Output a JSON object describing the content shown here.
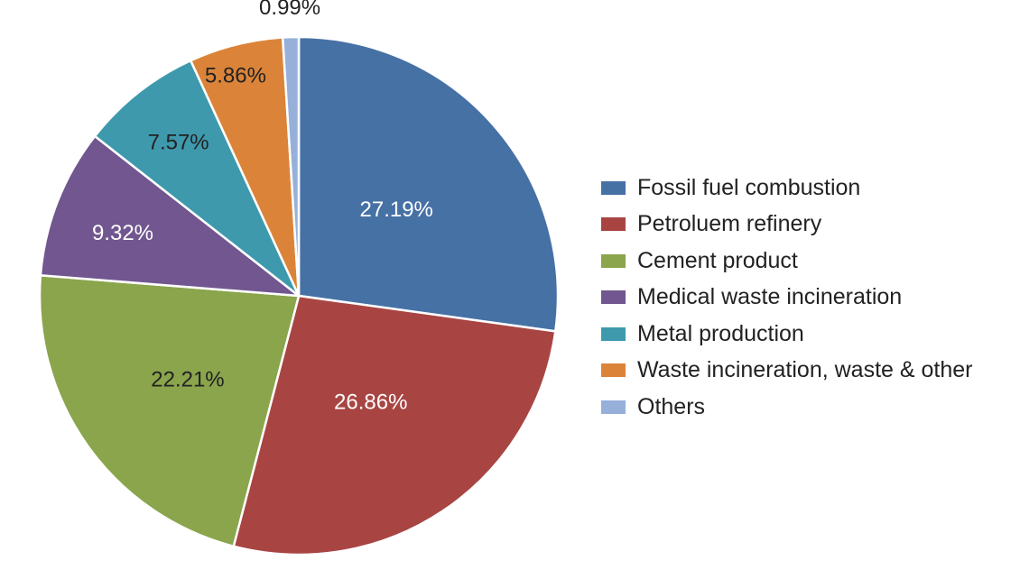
{
  "chart_data": {
    "type": "pie",
    "title": "",
    "slices": [
      {
        "name": "Fossil fuel combustion",
        "value": 27.19,
        "label": "27.19%",
        "color": "#4671a5",
        "label_color": "#ffffff"
      },
      {
        "name": "Petroluem refinery",
        "value": 26.86,
        "label": "26.86%",
        "color": "#a84543",
        "label_color": "#ffffff"
      },
      {
        "name": "Cement product",
        "value": 22.21,
        "label": "22.21%",
        "color": "#8aa54c",
        "label_color": "#222222"
      },
      {
        "name": "Medical waste incineration",
        "value": 9.32,
        "label": "9.32%",
        "color": "#71568f",
        "label_color": "#ffffff"
      },
      {
        "name": "Metal production",
        "value": 7.57,
        "label": "7.57%",
        "color": "#3f99ad",
        "label_color": "#222222"
      },
      {
        "name": "Waste incineration, waste & other",
        "value": 5.86,
        "label": "5.86%",
        "color": "#db8439",
        "label_color": "#222222"
      },
      {
        "name": "Others",
        "value": 0.99,
        "label": "0.99%",
        "color": "#96b0da",
        "label_color": "#222222"
      }
    ],
    "start": "12 o'clock",
    "direction": "clockwise",
    "legend": {
      "position": "right"
    }
  }
}
